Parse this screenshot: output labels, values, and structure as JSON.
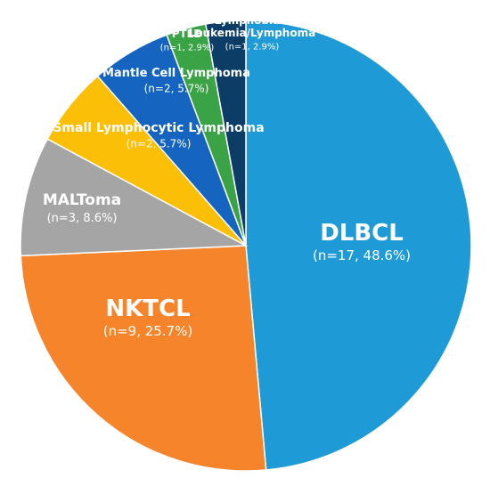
{
  "chart_data": {
    "type": "pie",
    "title": "",
    "slices": [
      {
        "name": "DLBCL",
        "value": 17,
        "label": "(n=17, 48.6%)",
        "color": "#1e9bd7"
      },
      {
        "name": "NKTCL",
        "value": 9,
        "label": "(n=9, 25.7%)",
        "color": "#f5842a"
      },
      {
        "name": "MALToma",
        "value": 3,
        "label": "(n=3, 8.6%)",
        "color": "#a5a5a5"
      },
      {
        "name": "Small Lymphocytic Lymphoma",
        "value": 2,
        "label": "(n=2, 5.7%)",
        "color": "#fcbf07"
      },
      {
        "name": "Mantle Cell Lymphoma",
        "value": 2,
        "label": "(n=2, 5.7%)",
        "color": "#1565c0"
      },
      {
        "name": "PTLD",
        "value": 1,
        "label": "(n=1, 2.9%)",
        "color": "#3aa346"
      },
      {
        "name": "B Lymphoblastic\nLeukemia/Lymphoma",
        "value": 1,
        "label": "(n=1, 2.9%)",
        "color": "#0b3d66"
      }
    ]
  }
}
